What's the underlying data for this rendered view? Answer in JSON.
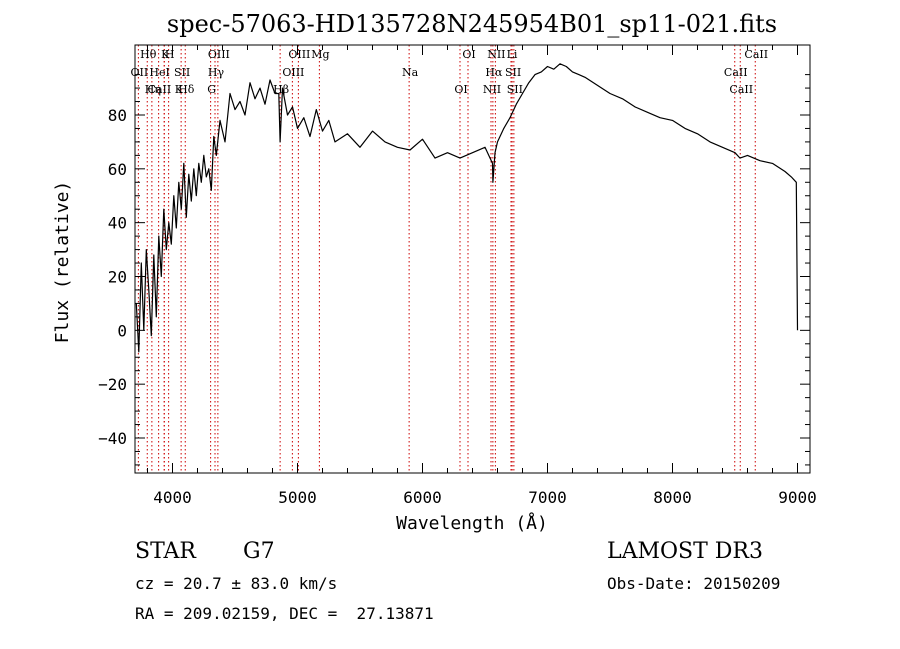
{
  "chart_data": {
    "type": "line",
    "title": "spec-57063-HD135728N245954B01_sp11-021.fits",
    "xlabel": "Wavelength (Å)",
    "ylabel": "Flux (relative)",
    "xlim": [
      3700,
      9100
    ],
    "ylim": [
      -53,
      106
    ],
    "xticks": [
      4000,
      5000,
      6000,
      7000,
      8000,
      9000
    ],
    "yticks": [
      -40,
      -20,
      0,
      20,
      40,
      60,
      80
    ],
    "grid": false,
    "line_color": "#000000",
    "marker_color": "#cc0000",
    "series": [
      {
        "name": "flux",
        "x": [
          3710,
          3730,
          3750,
          3770,
          3790,
          3810,
          3830,
          3850,
          3870,
          3890,
          3910,
          3930,
          3950,
          3970,
          3990,
          4010,
          4030,
          4050,
          4070,
          4090,
          4110,
          4130,
          4150,
          4170,
          4190,
          4210,
          4230,
          4250,
          4270,
          4290,
          4310,
          4330,
          4350,
          4380,
          4420,
          4460,
          4500,
          4540,
          4580,
          4620,
          4660,
          4700,
          4740,
          4780,
          4820,
          4850,
          4861,
          4880,
          4920,
          4960,
          5000,
          5050,
          5100,
          5150,
          5200,
          5250,
          5300,
          5400,
          5500,
          5600,
          5700,
          5800,
          5900,
          6000,
          6100,
          6200,
          6300,
          6400,
          6500,
          6560,
          6563,
          6580,
          6600,
          6650,
          6700,
          6750,
          6800,
          6850,
          6900,
          6950,
          7000,
          7050,
          7100,
          7150,
          7200,
          7250,
          7300,
          7400,
          7500,
          7600,
          7700,
          7800,
          7900,
          8000,
          8100,
          8200,
          8300,
          8400,
          8500,
          8540,
          8600,
          8700,
          8800,
          8900,
          8950,
          8990,
          9000
        ],
        "y": [
          10,
          -8,
          25,
          0,
          30,
          15,
          -2,
          28,
          5,
          35,
          20,
          45,
          30,
          40,
          32,
          50,
          38,
          55,
          45,
          62,
          42,
          58,
          48,
          60,
          50,
          62,
          55,
          65,
          57,
          60,
          52,
          72,
          65,
          78,
          70,
          88,
          82,
          85,
          80,
          92,
          86,
          90,
          84,
          93,
          88,
          88,
          70,
          90,
          80,
          83,
          75,
          79,
          72,
          82,
          74,
          78,
          70,
          73,
          68,
          74,
          70,
          68,
          67,
          71,
          64,
          66,
          64,
          66,
          68,
          62,
          55,
          66,
          70,
          75,
          79,
          84,
          88,
          92,
          95,
          96,
          98,
          97,
          99,
          98,
          96,
          95,
          94,
          91,
          88,
          86,
          83,
          81,
          79,
          78,
          75,
          73,
          70,
          68,
          66,
          64,
          65,
          63,
          62,
          59,
          57,
          55,
          0
        ]
      }
    ],
    "lines": [
      {
        "label": "Hθ",
        "x": 3798
      },
      {
        "label": "OII",
        "x": 3727
      },
      {
        "label": "CaII K",
        "x": 3934
      },
      {
        "label": "K",
        "x": 3934
      },
      {
        "label": "HeI",
        "x": 3889
      },
      {
        "label": "Hη",
        "x": 3835
      },
      {
        "label": "H",
        "x": 3969
      },
      {
        "label": "SII",
        "x": 4069
      },
      {
        "label": "Hδ",
        "x": 4102
      },
      {
        "label": "OIII",
        "x": 4363
      },
      {
        "label": "Hγ",
        "x": 4340
      },
      {
        "label": "G",
        "x": 4305
      },
      {
        "label": "OIII",
        "x": 5007
      },
      {
        "label": "OIII",
        "x": 4959
      },
      {
        "label": "Hβ",
        "x": 4861
      },
      {
        "label": "Mg",
        "x": 5175
      },
      {
        "label": "Na",
        "x": 5893
      },
      {
        "label": "OI",
        "x": 6300
      },
      {
        "label": "OI",
        "x": 6364
      },
      {
        "label": "Hα",
        "x": 6563
      },
      {
        "label": "NII",
        "x": 6548
      },
      {
        "label": "NII",
        "x": 6583
      },
      {
        "label": "SII",
        "x": 6717
      },
      {
        "label": "SII",
        "x": 6731
      },
      {
        "label": "Li",
        "x": 6708
      },
      {
        "label": "CaII",
        "x": 8498
      },
      {
        "label": "CaII",
        "x": 8542
      },
      {
        "label": "CaII",
        "x": 8662
      }
    ]
  },
  "info": {
    "object_type": "STAR",
    "subclass": "G7",
    "survey": "LAMOST DR3",
    "cz": "cz = 20.7 ± 83.0 km/s",
    "obs_date": "Obs-Date: 20150209",
    "radec": "RA = 209.02159, DEC =  27.13871"
  }
}
